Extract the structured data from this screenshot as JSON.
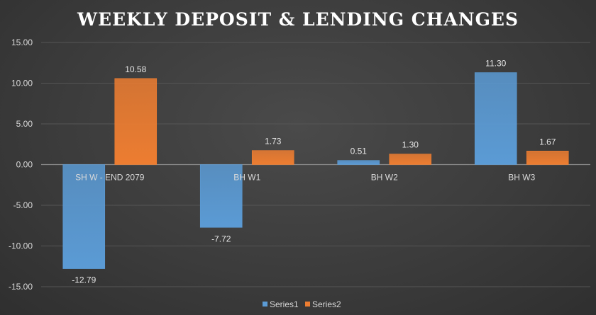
{
  "chart_data": {
    "type": "bar",
    "title": "WEEKLY DEPOSIT & LENDING CHANGES",
    "categories": [
      "SH W - END 2079",
      "BH W1",
      "BH W2",
      "BH W3"
    ],
    "series": [
      {
        "name": "Series1",
        "values": [
          -12.79,
          -7.72,
          0.51,
          11.3
        ],
        "labels": [
          "-12.79",
          "-7.72",
          "0.51",
          "11.30"
        ],
        "color": "#5b9bd5"
      },
      {
        "name": "Series2",
        "values": [
          10.58,
          1.73,
          1.3,
          1.67
        ],
        "labels": [
          "10.58",
          "1.73",
          "1.30",
          "1.67"
        ],
        "color": "#ed7d31"
      }
    ],
    "yticks": [
      "15.00",
      "10.00",
      "5.00",
      "0.00",
      "-5.00",
      "-10.00",
      "-15.00"
    ],
    "ylim": [
      -15,
      15
    ],
    "grid": true,
    "legend": "bottom",
    "xlabel": "",
    "ylabel": ""
  }
}
